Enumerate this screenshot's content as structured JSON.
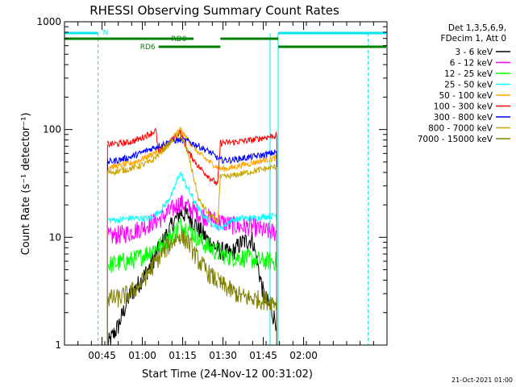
{
  "chart_data": {
    "type": "line",
    "title": "RHESSI Observing Summary Count Rates",
    "xlabel": "Start Time (24-Nov-12 00:31:02)",
    "ylabel": "Count Rate (s⁻¹ detector⁻¹)",
    "ylog": true,
    "ylim": [
      1,
      1000
    ],
    "xlim_minutes": [
      0,
      120
    ],
    "x_tick_labels": [
      "00:45",
      "01:00",
      "01:15",
      "01:30",
      "01:45",
      "02:00"
    ],
    "x_tick_minutes": [
      13.97,
      28.97,
      43.97,
      58.97,
      73.97,
      88.97
    ],
    "y_tick_values": [
      1,
      10,
      100,
      1000
    ],
    "y_tick_labels": [
      "1",
      "10",
      "100",
      "1000"
    ],
    "legend": {
      "position": "right",
      "header": [
        "Det 1,3,5,6,9,",
        "FDecim 1, Att 0"
      ]
    },
    "annotations": {
      "night_label": "N",
      "rd0_label": "RD0",
      "rd6_label": "RD6"
    },
    "timestamp": "21-Oct-2021 01:00",
    "colors": {
      "night": "#00e5ee",
      "rd": "#008000"
    },
    "data_windows": [
      {
        "start": 16,
        "end": 38
      },
      {
        "start": 38,
        "end": 57
      },
      {
        "start": 57,
        "end": 79
      }
    ],
    "series": [
      {
        "name": "3 - 6 keV",
        "color": "#000000",
        "points": [
          [
            16,
            1.0
          ],
          [
            20,
            1.5
          ],
          [
            24,
            2.8
          ],
          [
            28,
            3.8
          ],
          [
            32,
            5.5
          ],
          [
            36,
            8.5
          ],
          [
            40,
            13
          ],
          [
            43,
            17
          ],
          [
            46,
            16
          ],
          [
            50,
            12
          ],
          [
            54,
            9
          ],
          [
            58,
            7.5
          ],
          [
            62,
            7
          ],
          [
            66,
            9
          ],
          [
            70,
            9.5
          ],
          [
            74,
            3
          ],
          [
            79,
            1.6
          ]
        ]
      },
      {
        "name": "6 - 12 keV",
        "color": "#ff00ff",
        "points": [
          [
            16,
            10
          ],
          [
            20,
            10.5
          ],
          [
            24,
            11
          ],
          [
            28,
            12
          ],
          [
            32,
            13.5
          ],
          [
            36,
            15
          ],
          [
            40,
            18
          ],
          [
            43,
            21
          ],
          [
            46,
            19
          ],
          [
            50,
            16.5
          ],
          [
            54,
            15
          ],
          [
            58,
            14
          ],
          [
            62,
            13
          ],
          [
            66,
            12.5
          ],
          [
            70,
            12.5
          ],
          [
            74,
            11.5
          ],
          [
            79,
            11
          ]
        ]
      },
      {
        "name": "12 - 25 keV",
        "color": "#00ff00",
        "points": [
          [
            16,
            5.5
          ],
          [
            20,
            5.8
          ],
          [
            24,
            6
          ],
          [
            28,
            6.5
          ],
          [
            32,
            7.5
          ],
          [
            36,
            8.5
          ],
          [
            40,
            10.5
          ],
          [
            43,
            13
          ],
          [
            46,
            12
          ],
          [
            50,
            9.5
          ],
          [
            54,
            8
          ],
          [
            58,
            7
          ],
          [
            62,
            6.5
          ],
          [
            66,
            6.5
          ],
          [
            70,
            6.2
          ],
          [
            74,
            6
          ],
          [
            79,
            6
          ]
        ]
      },
      {
        "name": "25 - 50 keV",
        "color": "#00ffff",
        "points": [
          [
            16,
            14.5
          ],
          [
            20,
            14.5
          ],
          [
            24,
            15
          ],
          [
            28,
            15
          ],
          [
            32,
            15
          ],
          [
            36,
            18
          ],
          [
            40,
            25
          ],
          [
            43,
            40
          ],
          [
            46,
            28
          ],
          [
            50,
            18
          ],
          [
            54,
            14
          ],
          [
            58,
            12
          ],
          [
            62,
            14.5
          ],
          [
            66,
            15
          ],
          [
            70,
            15
          ],
          [
            74,
            15.5
          ],
          [
            79,
            16
          ]
        ]
      },
      {
        "name": "50 - 100 keV",
        "color": "#ffa500",
        "points": [
          [
            16,
            45
          ],
          [
            20,
            46
          ],
          [
            24,
            48
          ],
          [
            28,
            52
          ],
          [
            32,
            58
          ],
          [
            36,
            67
          ],
          [
            40,
            82
          ],
          [
            43,
            100
          ],
          [
            46,
            80
          ],
          [
            50,
            60
          ],
          [
            54,
            50
          ],
          [
            58,
            43
          ],
          [
            62,
            44
          ],
          [
            66,
            47
          ],
          [
            70,
            49
          ],
          [
            74,
            52
          ],
          [
            79,
            55
          ]
        ]
      },
      {
        "name": "100 - 300 keV",
        "color": "#ff0000",
        "points": [
          [
            16,
            73
          ],
          [
            20,
            74
          ],
          [
            24,
            76
          ],
          [
            28,
            82
          ],
          [
            32,
            92
          ],
          [
            34,
            98
          ],
          [
            35,
            60
          ],
          [
            38,
            70
          ],
          [
            40,
            80
          ],
          [
            43,
            95
          ],
          [
            46,
            62
          ],
          [
            50,
            45
          ],
          [
            54,
            36
          ],
          [
            57,
            31
          ],
          [
            58,
            75
          ],
          [
            62,
            76
          ],
          [
            66,
            78
          ],
          [
            70,
            80
          ],
          [
            74,
            84
          ],
          [
            79,
            88
          ]
        ]
      },
      {
        "name": "300 - 800 keV",
        "color": "#0000ff",
        "points": [
          [
            16,
            50
          ],
          [
            20,
            52
          ],
          [
            24,
            55
          ],
          [
            28,
            60
          ],
          [
            32,
            66
          ],
          [
            36,
            72
          ],
          [
            40,
            78
          ],
          [
            43,
            80
          ],
          [
            46,
            78
          ],
          [
            50,
            70
          ],
          [
            54,
            62
          ],
          [
            58,
            52
          ],
          [
            62,
            52
          ],
          [
            66,
            54
          ],
          [
            70,
            56
          ],
          [
            74,
            58
          ],
          [
            79,
            62
          ]
        ]
      },
      {
        "name": "800 - 7000 keV",
        "color": "#c8a600",
        "points": [
          [
            16,
            40
          ],
          [
            20,
            41
          ],
          [
            24,
            43
          ],
          [
            28,
            46
          ],
          [
            32,
            50
          ],
          [
            36,
            62
          ],
          [
            40,
            78
          ],
          [
            43,
            92
          ],
          [
            46,
            60
          ],
          [
            50,
            22
          ],
          [
            54,
            16
          ],
          [
            57,
            14
          ],
          [
            58,
            36
          ],
          [
            62,
            37
          ],
          [
            66,
            39
          ],
          [
            70,
            41
          ],
          [
            74,
            43
          ],
          [
            79,
            45
          ]
        ]
      },
      {
        "name": "7000 - 15000 keV",
        "color": "#808000",
        "points": [
          [
            16,
            2.7
          ],
          [
            20,
            2.7
          ],
          [
            24,
            3
          ],
          [
            28,
            3.6
          ],
          [
            32,
            5
          ],
          [
            36,
            7
          ],
          [
            40,
            9
          ],
          [
            43,
            10.5
          ],
          [
            46,
            9
          ],
          [
            50,
            6
          ],
          [
            54,
            4.5
          ],
          [
            58,
            3.7
          ],
          [
            62,
            3.2
          ],
          [
            66,
            2.8
          ],
          [
            70,
            2.7
          ],
          [
            74,
            2.6
          ],
          [
            79,
            2.5
          ]
        ]
      }
    ]
  }
}
